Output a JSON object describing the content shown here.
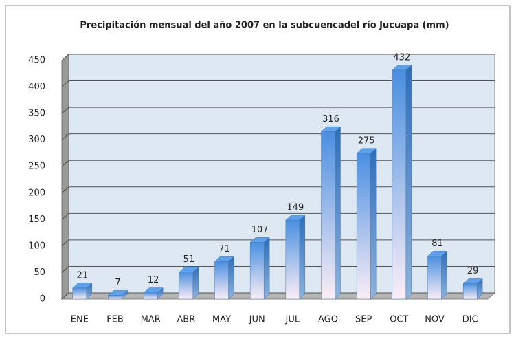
{
  "chart_data": {
    "type": "bar",
    "title": "Precipitación mensual del año 2007 en la subcuencadel río Jucuapa (mm)",
    "categories": [
      "ENE",
      "FEB",
      "MAR",
      "ABR",
      "MAY",
      "JUN",
      "JUL",
      "AGO",
      "SEP",
      "OCT",
      "NOV",
      "DIC"
    ],
    "values": [
      21,
      7,
      12,
      51,
      71,
      107,
      149,
      316,
      275,
      432,
      81,
      29
    ],
    "color": "#4a8fe0",
    "ylim": [
      0,
      450
    ],
    "yticks": [
      0,
      50,
      100,
      150,
      200,
      250,
      300,
      350,
      400,
      450
    ],
    "grid": true
  }
}
